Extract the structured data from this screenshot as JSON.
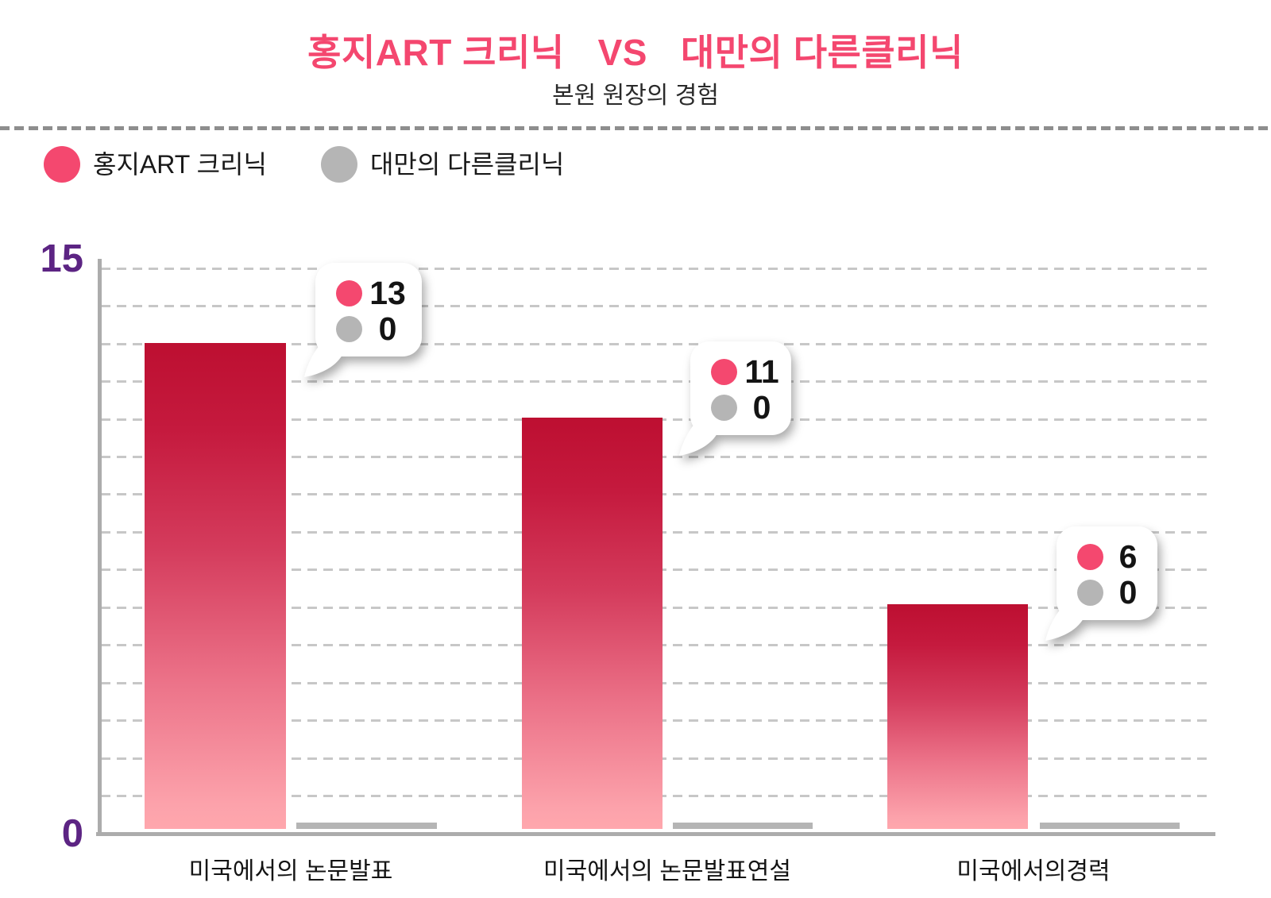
{
  "header": {
    "title_left": "홍지ART 크리닉",
    "title_vs": "VS",
    "title_right": "대만의 다른클리닉",
    "subtitle": "본원 원장의 경험"
  },
  "legend": [
    {
      "label": "홍지ART 크리닉",
      "color": "#F4486F"
    },
    {
      "label": "대만의 다른클리닉",
      "color": "#B5B5B5"
    }
  ],
  "axis": {
    "y_top_label": "15",
    "y_bottom_label": "0"
  },
  "chart_data": {
    "type": "bar",
    "title": "홍지ART 크리닉 VS 대만의 다른클리닉",
    "subtitle": "본원 원장의 경험",
    "categories": [
      "미국에서의 논문발표",
      "미국에서의 논문발표연설",
      "미국에서의경력"
    ],
    "series": [
      {
        "name": "홍지ART 크리닉",
        "color": "#F4486F",
        "values": [
          13,
          11,
          6
        ]
      },
      {
        "name": "대만의 다른클리닉",
        "color": "#B5B5B5",
        "values": [
          0,
          0,
          0
        ]
      }
    ],
    "ylim": [
      0,
      15
    ],
    "yticks": [
      0,
      15
    ],
    "grid": "horizontal dashed lines at every 1 unit",
    "legend_position": "top-left",
    "annotation_style": "white speech-bubble callouts at each bar top showing both series values",
    "colors": {
      "accent_pink": "#F4476F",
      "bar_gradient_top": "#BD0F31",
      "bar_gradient_bottom": "#FFA7AD",
      "axis_gray": "#ACACAC",
      "axis_label_purple": "#5C2483",
      "gridline_gray": "#C7C7C7"
    }
  }
}
